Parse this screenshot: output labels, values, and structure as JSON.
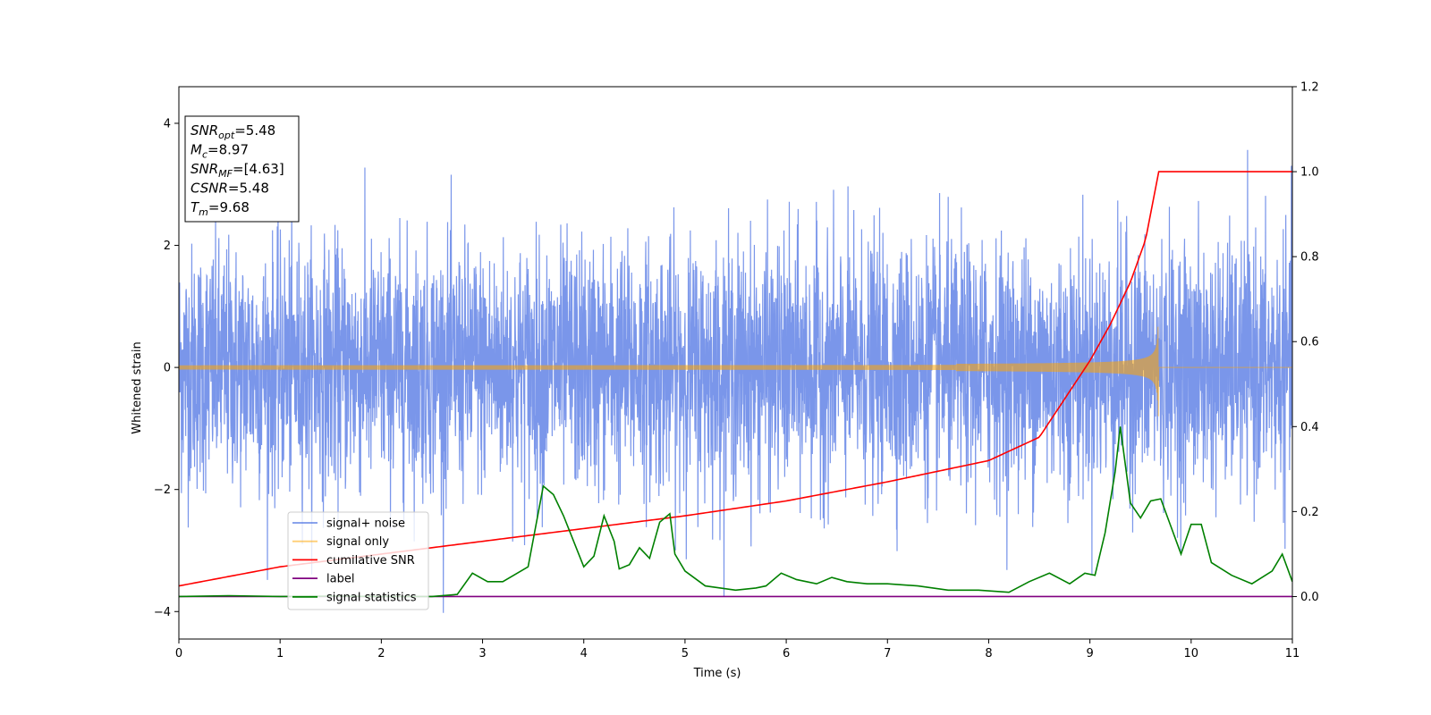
{
  "chart_data": {
    "type": "line",
    "xlabel": "Time (s)",
    "ylabel": "Whitened strain",
    "xlim": [
      0,
      11
    ],
    "ylim_left": [
      -4.45,
      4.6
    ],
    "ylim_right": [
      -0.1,
      1.2
    ],
    "x_ticks": [
      0,
      1,
      2,
      3,
      4,
      5,
      6,
      7,
      8,
      9,
      10,
      11
    ],
    "y_ticks_left": [
      -4,
      -2,
      0,
      2,
      4
    ],
    "y_ticks_right": [
      0.0,
      0.2,
      0.4,
      0.6,
      0.8,
      1.0,
      1.2
    ],
    "legend_location": "lower-left",
    "colors": {
      "signal_noise": "#4169e1",
      "signal_only": "#ffa500",
      "cumulative_snr": "#ff0000",
      "label": "#800080",
      "signal_statistics": "#008000"
    },
    "annotation": {
      "lines": [
        {
          "name": "SNR",
          "sub": "opt",
          "value": "=5.48"
        },
        {
          "name": "M",
          "sub": "c",
          "value": "=8.97"
        },
        {
          "name": "SNR",
          "sub": "MF",
          "value": "=[4.63]"
        },
        {
          "name": "CSNR",
          "sub": "",
          "value": "=5.48"
        },
        {
          "name": "T",
          "sub": "m",
          "value": "=9.68"
        }
      ]
    },
    "series": [
      {
        "name": "signal+ noise",
        "axis": "left",
        "description_only": true,
        "amplitude_typical": 1.0,
        "range": [
          -4.05,
          3.95
        ]
      },
      {
        "name": "signal only",
        "axis": "left",
        "merger_time": 9.68,
        "peak_amplitude": 0.8,
        "initial_amplitude": 0.03
      },
      {
        "name": "cumilative SNR",
        "axis": "right",
        "x": [
          0,
          1,
          2,
          3,
          4,
          5,
          6,
          7,
          8,
          8.5,
          9,
          9.2,
          9.4,
          9.55,
          9.68,
          11
        ],
        "y": [
          0.025,
          0.07,
          0.1,
          0.13,
          0.16,
          0.19,
          0.225,
          0.27,
          0.32,
          0.375,
          0.555,
          0.64,
          0.74,
          0.84,
          1.0,
          1.0
        ]
      },
      {
        "name": "label",
        "axis": "right",
        "x": [
          0,
          11
        ],
        "y": [
          0.0,
          0.0
        ]
      },
      {
        "name": "signal statistics",
        "axis": "right",
        "x": [
          0,
          0.5,
          1,
          1.5,
          2,
          2.5,
          2.75,
          2.9,
          3.05,
          3.2,
          3.45,
          3.6,
          3.7,
          3.8,
          3.95,
          4.0,
          4.1,
          4.2,
          4.3,
          4.35,
          4.45,
          4.55,
          4.65,
          4.75,
          4.85,
          4.9,
          5.0,
          5.2,
          5.5,
          5.7,
          5.8,
          5.95,
          6.1,
          6.3,
          6.45,
          6.6,
          6.8,
          7.0,
          7.3,
          7.6,
          7.9,
          8.2,
          8.4,
          8.6,
          8.8,
          8.95,
          9.05,
          9.15,
          9.25,
          9.3,
          9.4,
          9.5,
          9.6,
          9.7,
          9.8,
          9.9,
          10.0,
          10.1,
          10.2,
          10.4,
          10.6,
          10.8,
          10.9,
          11
        ],
        "y": [
          0.0,
          0.002,
          0.0,
          0.001,
          0.0,
          0.0,
          0.005,
          0.055,
          0.035,
          0.035,
          0.07,
          0.26,
          0.24,
          0.19,
          0.1,
          0.07,
          0.095,
          0.19,
          0.13,
          0.065,
          0.075,
          0.115,
          0.09,
          0.175,
          0.195,
          0.1,
          0.06,
          0.025,
          0.015,
          0.02,
          0.025,
          0.055,
          0.04,
          0.03,
          0.045,
          0.035,
          0.03,
          0.03,
          0.025,
          0.015,
          0.015,
          0.01,
          0.035,
          0.055,
          0.03,
          0.055,
          0.05,
          0.15,
          0.295,
          0.4,
          0.22,
          0.185,
          0.225,
          0.23,
          0.165,
          0.1,
          0.17,
          0.17,
          0.08,
          0.05,
          0.03,
          0.06,
          0.1,
          0.035
        ]
      }
    ]
  }
}
